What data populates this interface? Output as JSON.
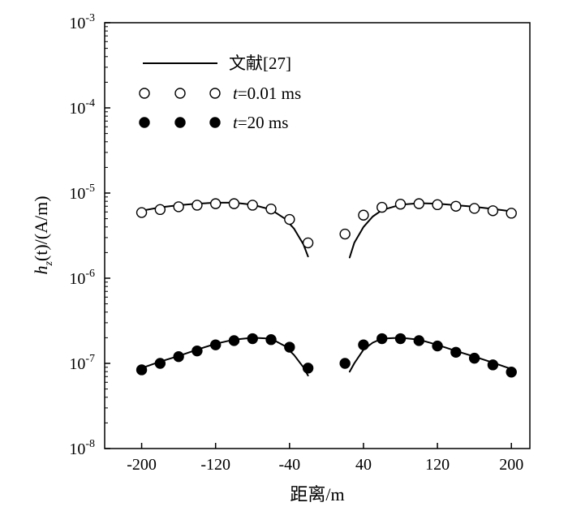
{
  "chart_data": {
    "type": "scatter",
    "title": "",
    "xlabel": "距离/m",
    "ylabel": "h_z(t)/(A/m)",
    "ylabel_parts": {
      "h": "h",
      "sub": "z",
      "rest": "(t)/(A/m)"
    },
    "xlim": [
      -240,
      220
    ],
    "ylim": [
      1e-08,
      0.001
    ],
    "yscale": "log",
    "x_ticks": [
      -200,
      -120,
      -40,
      40,
      120,
      200
    ],
    "x_tick_labels": [
      "-200",
      "-120",
      "-40",
      "40",
      "120",
      "200"
    ],
    "y_ticks": [
      1e-08,
      1e-07,
      1e-06,
      1e-05,
      0.0001,
      0.001
    ],
    "y_tick_labels": [
      {
        "base": "10",
        "exp": "-8"
      },
      {
        "base": "10",
        "exp": "-7"
      },
      {
        "base": "10",
        "exp": "-6"
      },
      {
        "base": "10",
        "exp": "-5"
      },
      {
        "base": "10",
        "exp": "-4"
      },
      {
        "base": "10",
        "exp": "-3"
      }
    ],
    "legend": {
      "position": "top-left",
      "entries": [
        {
          "label": "文献[27]",
          "style": "line"
        },
        {
          "label_italic": "t",
          "label_rest": "=0.01 ms",
          "style": "open-circle"
        },
        {
          "label_italic": "t",
          "label_rest": "=20 ms",
          "style": "filled-circle"
        }
      ]
    },
    "series": [
      {
        "name": "文献[27] (t=0.01 ms)",
        "style": "line",
        "segments": [
          {
            "x": [
              -200,
              -180,
              -160,
              -140,
              -120,
              -100,
              -80,
              -60,
              -45,
              -35,
              -25,
              -20
            ],
            "y": [
              6.2e-06,
              6.8e-06,
              7.2e-06,
              7.5e-06,
              7.7e-06,
              7.7e-06,
              7.3e-06,
              6.4e-06,
              5e-06,
              3.8e-06,
              2.5e-06,
              1.8e-06
            ]
          },
          {
            "x": [
              25,
              30,
              40,
              50,
              60,
              80,
              100,
              120,
              140,
              160,
              180,
              200
            ],
            "y": [
              1.75e-06,
              2.6e-06,
              4e-06,
              5.3e-06,
              6.3e-06,
              7.3e-06,
              7.6e-06,
              7.5e-06,
              7.2e-06,
              6.9e-06,
              6.5e-06,
              6.1e-06
            ]
          }
        ]
      },
      {
        "name": "t=0.01 ms",
        "style": "open-circle",
        "x": [
          -200,
          -180,
          -160,
          -140,
          -120,
          -100,
          -80,
          -60,
          -40,
          -20,
          20,
          40,
          60,
          80,
          100,
          120,
          140,
          160,
          180,
          200
        ],
        "y": [
          5.9e-06,
          6.4e-06,
          6.9e-06,
          7.2e-06,
          7.5e-06,
          7.5e-06,
          7.2e-06,
          6.5e-06,
          4.9e-06,
          2.6e-06,
          3.3e-06,
          5.5e-06,
          6.8e-06,
          7.4e-06,
          7.5e-06,
          7.3e-06,
          7e-06,
          6.6e-06,
          6.2e-06,
          5.8e-06
        ]
      },
      {
        "name": "文献[27] (t=20 ms)",
        "style": "line",
        "segments": [
          {
            "x": [
              -200,
              -180,
              -160,
              -140,
              -120,
              -100,
              -80,
              -60,
              -45,
              -35,
              -25,
              -20
            ],
            "y": [
              8.8e-08,
              1.05e-07,
              1.22e-07,
              1.45e-07,
              1.7e-07,
              1.9e-07,
              2e-07,
              1.95e-07,
              1.6e-07,
              1.25e-07,
              9e-08,
              7.2e-08
            ]
          },
          {
            "x": [
              25,
              30,
              40,
              50,
              60,
              80,
              100,
              120,
              140,
              160,
              180,
              200
            ],
            "y": [
              8e-08,
              1e-07,
              1.45e-07,
              1.75e-07,
              1.95e-07,
              2e-07,
              1.9e-07,
              1.65e-07,
              1.4e-07,
              1.2e-07,
              1.02e-07,
              8.6e-08
            ]
          }
        ]
      },
      {
        "name": "t=20 ms",
        "style": "filled-circle",
        "x": [
          -200,
          -180,
          -160,
          -140,
          -120,
          -100,
          -80,
          -60,
          -40,
          -20,
          20,
          40,
          60,
          80,
          100,
          120,
          140,
          160,
          180,
          200
        ],
        "y": [
          8.4e-08,
          1e-07,
          1.2e-07,
          1.4e-07,
          1.65e-07,
          1.85e-07,
          1.95e-07,
          1.9e-07,
          1.55e-07,
          8.8e-08,
          1e-07,
          1.65e-07,
          1.95e-07,
          1.95e-07,
          1.85e-07,
          1.6e-07,
          1.35e-07,
          1.15e-07,
          9.6e-08,
          7.9e-08
        ]
      }
    ]
  }
}
